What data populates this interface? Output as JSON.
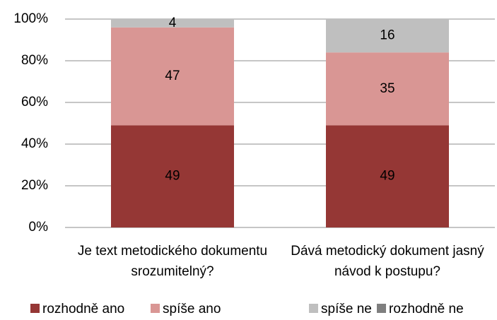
{
  "chart_data": {
    "type": "bar",
    "stacked": true,
    "categories": [
      "Je text metodického dokumentu srozumitelný?",
      "Dává metodický dokument jasný návod k postupu?"
    ],
    "series": [
      {
        "name": "rozhodně ano",
        "color": "#953735",
        "values": [
          49,
          49
        ]
      },
      {
        "name": "spíše ano",
        "color": "#d99694",
        "values": [
          47,
          35
        ]
      },
      {
        "name": "spíše ne",
        "color": "#bfbfbf",
        "values": [
          4,
          16
        ]
      },
      {
        "name": "rozhodně ne",
        "color": "#7f7f7f",
        "values": [
          0,
          0
        ]
      }
    ],
    "ylim": [
      0,
      100
    ],
    "yticks": [
      {
        "value": 0,
        "label": "0%"
      },
      {
        "value": 20,
        "label": "20%"
      },
      {
        "value": 40,
        "label": "40%"
      },
      {
        "value": 60,
        "label": "60%"
      },
      {
        "value": 80,
        "label": "80%"
      },
      {
        "value": 100,
        "label": "100%"
      }
    ],
    "grid": true,
    "legend": "bottom",
    "data_labels": true
  }
}
